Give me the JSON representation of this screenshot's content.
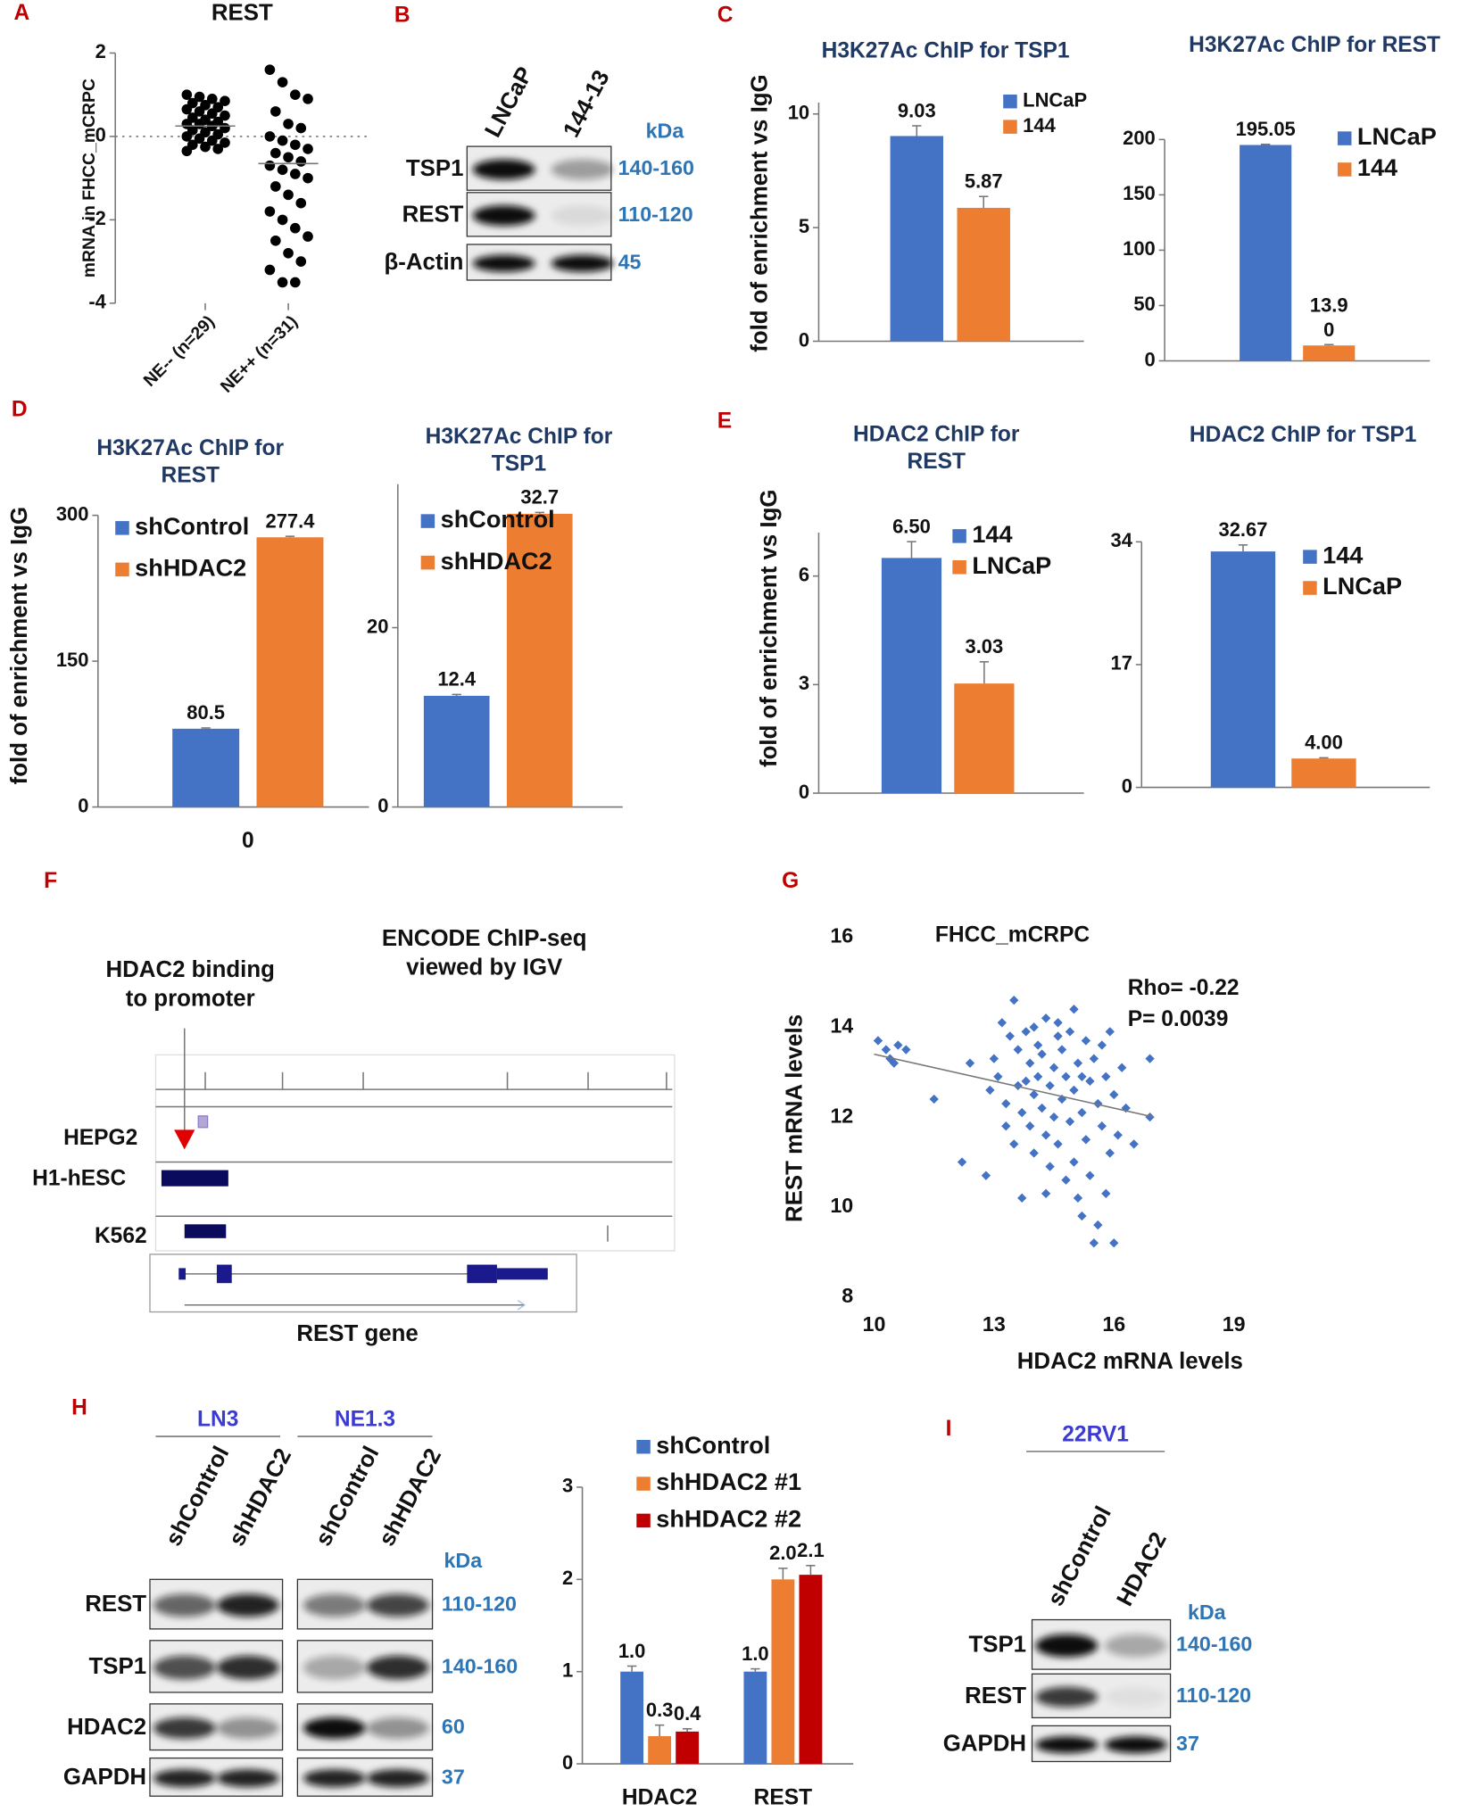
{
  "panel_letters": [
    "A",
    "B",
    "C",
    "D",
    "E",
    "F",
    "G",
    "H",
    "I"
  ],
  "chart_data": [
    {
      "type": "strip",
      "title": "REST",
      "ylabel": "mRNA in FHCC_mCRPC",
      "categories": [
        "NE-- (n=29)",
        "NE++ (n=31)"
      ],
      "color": "#000000",
      "median_color": "#00c000",
      "values": [
        [
          1.0,
          0.95,
          0.9,
          0.85,
          0.8,
          0.75,
          0.7,
          0.65,
          0.6,
          0.55,
          0.5,
          0.45,
          0.4,
          0.35,
          0.3,
          0.3,
          0.25,
          0.2,
          0.15,
          0.1,
          0.05,
          0,
          -0.05,
          -0.1,
          -0.15,
          -0.2,
          -0.25,
          -0.3,
          -0.35
        ],
        [
          1.6,
          1.3,
          1.0,
          0.9,
          0.6,
          0.3,
          0.2,
          0,
          -0.1,
          -0.2,
          -0.3,
          -0.4,
          -0.5,
          -0.6,
          -0.7,
          -0.8,
          -0.9,
          -1.0,
          -1.2,
          -1.4,
          -1.6,
          -1.8,
          -2.0,
          -2.2,
          -2.4,
          -2.5,
          -2.8,
          -3.0,
          -3.2,
          -3.5,
          -3.5
        ]
      ],
      "medians": [
        0.25,
        -0.65
      ],
      "reference_line": 0,
      "ylim": [
        -4,
        2
      ],
      "yticks": [
        -4,
        -2,
        0,
        2
      ]
    },
    {
      "type": "bar",
      "title": "H3K27Ac ChIP for TSP1",
      "ylabel": "fold of enrichment vs IgG",
      "categories": [
        null
      ],
      "series": [
        {
          "name": "LNCaP",
          "color": "#4472c4",
          "values": [
            9.03
          ],
          "errors": [
            0.45
          ]
        },
        {
          "name": "144",
          "color": "#ed7d31",
          "values": [
            5.87
          ],
          "errors": [
            0.5
          ]
        }
      ],
      "ylim": [
        0,
        10.5
      ],
      "yticks": [
        0,
        5,
        10
      ]
    },
    {
      "type": "bar",
      "title": "H3K27Ac ChIP for REST",
      "categories": [
        null
      ],
      "series": [
        {
          "name": "LNCaP",
          "color": "#4472c4",
          "values": [
            195.05
          ],
          "errors": [
            0.6
          ]
        },
        {
          "name": "144",
          "color": "#ed7d31",
          "values": [
            13.9
          ],
          "errors": [
            0.8
          ],
          "value_labels": [
            "13.9\n0"
          ]
        }
      ],
      "ylim": [
        0,
        200
      ],
      "yticks": [
        0,
        50,
        100,
        150,
        200
      ]
    },
    {
      "type": "bar",
      "title": "H3K27Ac ChIP for\nREST",
      "ylabel": "fold of enrichment vs IgG",
      "categories": [
        "0"
      ],
      "series": [
        {
          "name": "shControl",
          "color": "#4472c4",
          "values": [
            80.5
          ],
          "errors": [
            0.8
          ]
        },
        {
          "name": "shHDAC2",
          "color": "#ed7d31",
          "values": [
            277.4
          ],
          "errors": [
            1
          ]
        }
      ],
      "ylim": [
        0,
        300
      ],
      "yticks": [
        0,
        150,
        300
      ]
    },
    {
      "type": "bar",
      "title": "H3K27Ac ChIP for\nTSP1",
      "categories": [
        null
      ],
      "series": [
        {
          "name": "shControl",
          "color": "#4472c4",
          "values": [
            12.4
          ],
          "errors": [
            0.15
          ]
        },
        {
          "name": "shHDAC2",
          "color": "#ed7d31",
          "values": [
            32.7
          ],
          "errors": [
            0.15
          ]
        }
      ],
      "ylim": [
        0,
        36
      ],
      "yticks": [
        0,
        20
      ]
    },
    {
      "type": "bar",
      "title": "HDAC2 ChIP for\nREST",
      "ylabel": "fold of enrichment vs IgG",
      "categories": [
        null
      ],
      "series": [
        {
          "name": "144",
          "color": "#4472c4",
          "values": [
            6.5
          ],
          "errors": [
            0.45
          ],
          "value_labels": [
            "6.50"
          ]
        },
        {
          "name": "LNCaP",
          "color": "#ed7d31",
          "values": [
            3.03
          ],
          "errors": [
            0.6
          ]
        }
      ],
      "ylim": [
        0,
        7.2
      ],
      "yticks": [
        0,
        3,
        6
      ]
    },
    {
      "type": "bar",
      "title": "HDAC2 ChIP for TSP1",
      "categories": [
        null
      ],
      "series": [
        {
          "name": "144",
          "color": "#4472c4",
          "values": [
            32.67
          ],
          "errors": [
            0.9
          ]
        },
        {
          "name": "LNCaP",
          "color": "#ed7d31",
          "values": [
            4.0
          ],
          "errors": [
            0.1
          ],
          "value_labels": [
            "4.00"
          ]
        }
      ],
      "ylim": [
        0,
        34
      ],
      "yticks": [
        0,
        17,
        34
      ]
    },
    {
      "type": "scatter",
      "title": "FHCC_mCRPC",
      "xlabel": "HDAC2 mRNA levels",
      "ylabel": "REST mRNA levels",
      "annotations": [
        "Rho= -0.22",
        "P= 0.0039"
      ],
      "color": "#4472c4",
      "x": [
        10.1,
        10.3,
        10.4,
        10.6,
        10.8,
        10.5,
        11.5,
        12.2,
        12.4,
        12.8,
        12.9,
        13.0,
        13.1,
        13.2,
        13.3,
        13.4,
        13.5,
        13.5,
        13.6,
        13.6,
        13.7,
        13.7,
        13.8,
        13.8,
        13.9,
        13.9,
        14.0,
        14.0,
        14.0,
        14.1,
        14.1,
        14.2,
        14.2,
        14.3,
        14.3,
        14.4,
        14.4,
        14.5,
        14.5,
        14.6,
        14.6,
        14.7,
        14.7,
        14.8,
        14.8,
        14.9,
        14.9,
        15.0,
        15.0,
        15.0,
        15.1,
        15.1,
        15.2,
        15.2,
        15.3,
        15.3,
        15.4,
        15.4,
        15.5,
        15.5,
        15.6,
        15.6,
        15.7,
        15.7,
        15.8,
        15.8,
        15.9,
        15.9,
        16.0,
        16.0,
        16.1,
        16.2,
        16.3,
        16.5,
        16.9,
        16.9,
        14.6,
        13.3,
        15.2,
        14.3
      ],
      "values": [
        13.7,
        13.5,
        13.3,
        13.6,
        13.5,
        13.2,
        12.4,
        11.0,
        13.2,
        10.7,
        12.6,
        13.3,
        12.9,
        14.1,
        12.3,
        13.8,
        14.6,
        11.4,
        12.7,
        13.5,
        10.2,
        12.1,
        13.9,
        12.8,
        11.8,
        13.2,
        12.5,
        14.0,
        11.2,
        13.6,
        12.9,
        12.2,
        13.4,
        11.6,
        14.2,
        12.7,
        10.9,
        13.1,
        12.0,
        13.8,
        11.4,
        12.4,
        13.5,
        10.6,
        12.9,
        13.9,
        11.9,
        14.4,
        12.6,
        11.0,
        10.2,
        13.2,
        12.1,
        9.8,
        13.7,
        11.5,
        12.8,
        10.7,
        13.3,
        9.2,
        12.3,
        9.6,
        11.8,
        13.6,
        10.3,
        12.9,
        11.2,
        13.9,
        9.2,
        12.5,
        11.6,
        13.1,
        12.2,
        11.4,
        13.3,
        12.0,
        14.1,
        11.8,
        12.9,
        10.3
      ],
      "trendline": {
        "x": [
          10,
          17
        ],
        "values": [
          13.4,
          12.0
        ]
      },
      "xlim": [
        10,
        19
      ],
      "xticks": [
        10,
        13,
        16,
        19
      ],
      "ylim": [
        8,
        16
      ],
      "yticks": [
        8,
        10,
        12,
        14,
        16
      ]
    },
    {
      "type": "bar",
      "categories": [
        "HDAC2",
        "REST"
      ],
      "series": [
        {
          "name": "shControl",
          "color": "#4472c4",
          "values": [
            1.0,
            1.0
          ],
          "errors": [
            0.06,
            0.03
          ],
          "value_labels": [
            "1.0",
            "1.0"
          ]
        },
        {
          "name": "shHDAC2 #1",
          "color": "#ed7d31",
          "values": [
            0.3,
            2.0
          ],
          "errors": [
            0.12,
            0.12
          ],
          "value_labels": [
            "0.3",
            "2.0"
          ]
        },
        {
          "name": "shHDAC2 #2",
          "color": "#c00000",
          "values": [
            0.35,
            2.05
          ],
          "errors": [
            0.03,
            0.1
          ],
          "value_labels": [
            "0.4",
            "2.1"
          ]
        }
      ],
      "ylim": [
        0,
        3
      ],
      "yticks": [
        0,
        1,
        2,
        3
      ]
    }
  ],
  "blots": [
    {
      "lanes": [
        "LNCaP",
        "144-13"
      ],
      "unit": "kDa",
      "rows": [
        {
          "label": "TSP1",
          "kda": "140-160"
        },
        {
          "label": "REST",
          "kda": "110-120"
        },
        {
          "label": "β-Actin",
          "kda": "45"
        }
      ]
    },
    {
      "groups": [
        "LN3",
        "NE1.3"
      ],
      "lanes": [
        "shControl",
        "shHDAC2",
        "shControl",
        "shHDAC2"
      ],
      "unit": "kDa",
      "rows": [
        {
          "label": "REST",
          "kda": "110-120"
        },
        {
          "label": "TSP1",
          "kda": "140-160"
        },
        {
          "label": "HDAC2",
          "kda": "60"
        },
        {
          "label": "GAPDH",
          "kda": "37"
        }
      ]
    },
    {
      "groups": [
        "22RV1"
      ],
      "lanes": [
        "shControl",
        "HDAC2"
      ],
      "unit": "kDa",
      "rows": [
        {
          "label": "TSP1",
          "kda": "140-160"
        },
        {
          "label": "REST",
          "kda": "110-120"
        },
        {
          "label": "GAPDH",
          "kda": "37"
        }
      ]
    }
  ],
  "igv": {
    "title": "ENCODE ChIP-seq\nviewed by IGV",
    "annotation": "HDAC2 binding\nto promoter",
    "tracks": [
      "HEPG2",
      "H1-hESC",
      "K562"
    ],
    "gene": "REST gene"
  }
}
